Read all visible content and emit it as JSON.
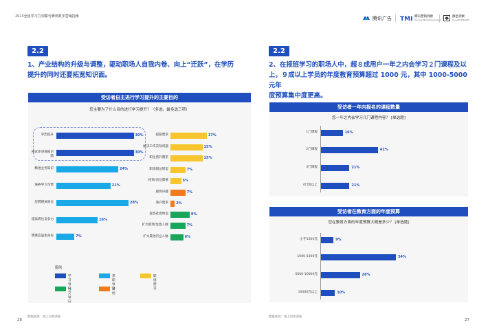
{
  "header": {
    "doc_title": "2023全民学习力洞察与腾讯数字营销指南",
    "logo1": "腾讯广告",
    "logo2_main": "腾讯营销洞察",
    "logo2_sub": "Tencent Marketing Insight",
    "logo3_main": "群邑洞察",
    "logo3_sub": "GroupM INSIGHT"
  },
  "colors": {
    "study": "#1f4fbf",
    "job": "#19a9e6",
    "career": "#f7c52d",
    "social": "#19a65b",
    "other": "#f27a1f",
    "accent": "#1f4fbf"
  },
  "left": {
    "badge": "2.2",
    "heading_line1": "1、产业结构的升级与调整，驱动职场人自我内卷、向上“迁跃”，在学历",
    "heading_line2": "提升的同时还要拓宽知识面。",
    "panel_title": "受访者自主进行学习提升的主要目的",
    "question": "您主要为了什么目的进行学习提升？（多选，最多选三项）",
    "col1": [
      {
        "label": "学历提升",
        "value": 30,
        "pct": "30%",
        "cat": "study"
      },
      {
        "label": "拓宽多领域知识面",
        "value": 30,
        "pct": "30%",
        "cat": "study"
      },
      {
        "label": "精进业务知识",
        "value": 24,
        "pct": "24%",
        "cat": "job"
      },
      {
        "label": "培养学习习惯",
        "value": 21,
        "pct": "21%",
        "cat": "job"
      },
      {
        "label": "应聘相关岗位",
        "value": 28,
        "pct": "28%",
        "cat": "job"
      },
      {
        "label": "提高岗位竞争力",
        "value": 16,
        "pct": "16%",
        "cat": "job"
      },
      {
        "label": "需要应届生身份",
        "value": 7,
        "pct": "7%",
        "cat": "job"
      }
    ],
    "col2": [
      {
        "label": "提薪需求",
        "value": 17,
        "pct": "17%",
        "cat": "career"
      },
      {
        "label": "解决工作实际问题",
        "value": 15,
        "pct": "15%",
        "cat": "career"
      },
      {
        "label": "职位晋升需求",
        "value": 15,
        "pct": "15%",
        "cat": "career"
      },
      {
        "label": "职场岗位转型",
        "value": 7,
        "pct": "7%",
        "cat": "career"
      },
      {
        "label": "招商/创业需要",
        "value": 5,
        "pct": "5%",
        "cat": "career"
      },
      {
        "label": "题目兴趣",
        "value": 7,
        "pct": "7%",
        "cat": "other"
      },
      {
        "label": "落户需求",
        "value": 2,
        "pct": "2%",
        "cat": "other"
      },
      {
        "label": "提高社会地位",
        "value": 9,
        "pct": "9%",
        "cat": "social"
      },
      {
        "label": "扩大职场/生意人脉",
        "value": 7,
        "pct": "7%",
        "cat": "social"
      },
      {
        "label": "扩大其他行业人脉",
        "value": 6,
        "pct": "6%",
        "cat": "social"
      }
    ],
    "legend_title": "图例",
    "legend": [
      {
        "label": "学习导向",
        "cat": "study"
      },
      {
        "label": "求职导向",
        "cat": "job"
      },
      {
        "label": "职场需求",
        "cat": "career"
      },
      {
        "label": "社交导向",
        "cat": "social"
      },
      {
        "label": "其他",
        "cat": "other"
      }
    ],
    "source": "数据来源：线上问卷调查",
    "page": "26"
  },
  "right": {
    "badge": "2.2",
    "heading_line1": "2、在报班学习的职场人中，超８成用户一年之内会学习２门课程及以",
    "heading_line2": "上，９成以上学员的年度教育预算超过 1000 元，其中 1000-5000 元年",
    "heading_line3": "度预算集中度更高。",
    "chart_data": [
      {
        "type": "bar",
        "title": "受访者一年内报名的课程数量",
        "subtitle": "您一年之内会学习几门课程内容？ [单选题]",
        "categories": [
          "1门课程",
          "2门课程",
          "3门课程",
          "4门及以上"
        ],
        "values": [
          16,
          42,
          21,
          21
        ],
        "labels": [
          "16%",
          "42%",
          "21%",
          "21%"
        ],
        "xlim": [
          0,
          60
        ]
      },
      {
        "type": "bar",
        "title": "受访者在教育方面的年度预算",
        "subtitle": "您在教育方面的年度预算大概是多少？ [单选题]",
        "categories": [
          "小于1000元",
          "1000-5000元",
          "5000-10000元",
          "10000元以上"
        ],
        "values": [
          9,
          54,
          28,
          10
        ],
        "labels": [
          "9%",
          "54%",
          "28%",
          "10%"
        ],
        "xlim": [
          0,
          60
        ]
      }
    ],
    "source": "数据来源：线上问卷调查",
    "page": "27"
  }
}
